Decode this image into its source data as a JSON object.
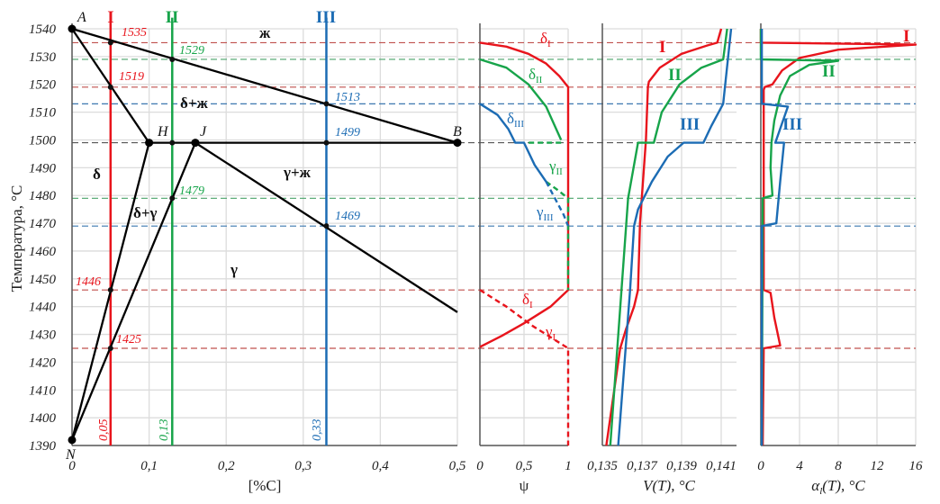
{
  "chart_data": [
    {
      "type": "line",
      "title": "",
      "xlabel": "[%C]",
      "ylabel": "Температура, °C",
      "xlim": [
        0,
        0.5
      ],
      "ylim": [
        1390,
        1540
      ],
      "x_ticks": [
        "0",
        "0,1",
        "0,2",
        "0,3",
        "0,4",
        "0,5"
      ],
      "y_ticks": [
        "1390",
        "1400",
        "1410",
        "1420",
        "1430",
        "1440",
        "1450",
        "1460",
        "1470",
        "1480",
        "1490",
        "1500",
        "1510",
        "1520",
        "1530",
        "1540"
      ],
      "grid": true,
      "phase_lines": [
        {
          "name": "AB",
          "points": [
            [
              0,
              1540
            ],
            [
              0.5,
              1499
            ]
          ]
        },
        {
          "name": "AH",
          "points": [
            [
              0,
              1540
            ],
            [
              0.1,
              1499
            ]
          ]
        },
        {
          "name": "HB",
          "points": [
            [
              0.1,
              1499
            ],
            [
              0.5,
              1499
            ]
          ]
        },
        {
          "name": "J-lower",
          "points": [
            [
              0.16,
              1499
            ],
            [
              0.5,
              1438
            ]
          ]
        },
        {
          "name": "NH",
          "points": [
            [
              0,
              1392
            ],
            [
              0.1,
              1499
            ]
          ]
        },
        {
          "name": "NJ",
          "points": [
            [
              0,
              1392
            ],
            [
              0.16,
              1499
            ]
          ]
        }
      ],
      "points": [
        {
          "label": "A",
          "x": 0,
          "T": 1540
        },
        {
          "label": "B",
          "x": 0.5,
          "T": 1499
        },
        {
          "label": "H",
          "x": 0.1,
          "T": 1499
        },
        {
          "label": "J",
          "x": 0.16,
          "T": 1499
        },
        {
          "label": "N",
          "x": 0,
          "T": 1392
        }
      ],
      "alloys": [
        {
          "label": "I",
          "composition": 0.05,
          "composition_label": "0,05",
          "color": "#e8141c"
        },
        {
          "label": "II",
          "composition": 0.13,
          "composition_label": "0,13",
          "color": "#17a44a"
        },
        {
          "label": "III",
          "composition": 0.33,
          "composition_label": "0,33",
          "color": "#1c6cb4"
        }
      ],
      "intersections": [
        {
          "label": "1535",
          "x": 0.05,
          "T": 1535,
          "color": "#e8141c"
        },
        {
          "label": "1529",
          "x": 0.13,
          "T": 1529,
          "color": "#17a44a"
        },
        {
          "label": "1519",
          "x": 0.05,
          "T": 1519,
          "color": "#e8141c"
        },
        {
          "label": "1513",
          "x": 0.33,
          "T": 1513,
          "color": "#1c6cb4"
        },
        {
          "label": "1499",
          "x": 0.33,
          "T": 1499,
          "color": "#1c6cb4"
        },
        {
          "label": "1479",
          "x": 0.13,
          "T": 1479,
          "color": "#17a44a"
        },
        {
          "label": "1469",
          "x": 0.33,
          "T": 1469,
          "color": "#1c6cb4"
        },
        {
          "label": "1446",
          "x": 0.05,
          "T": 1446,
          "color": "#e8141c"
        },
        {
          "label": "1425",
          "x": 0.05,
          "T": 1425,
          "color": "#e8141c"
        }
      ],
      "regions": [
        "ж",
        "δ+ж",
        "δ",
        "γ+ж",
        "δ+γ",
        "γ"
      ],
      "reference_isotherms": [
        {
          "T": 1535,
          "color": "#c0504d"
        },
        {
          "T": 1529,
          "color": "#4aa36a"
        },
        {
          "T": 1519,
          "color": "#c0504d"
        },
        {
          "T": 1513,
          "color": "#3c78b0"
        },
        {
          "T": 1499,
          "color": "#555555"
        },
        {
          "T": 1479,
          "color": "#4aa36a"
        },
        {
          "T": 1469,
          "color": "#3c78b0"
        },
        {
          "T": 1446,
          "color": "#c0504d"
        },
        {
          "T": 1425,
          "color": "#c0504d"
        }
      ]
    },
    {
      "type": "line",
      "xlabel": "ψ",
      "xlim": [
        0,
        1
      ],
      "ylim": [
        1390,
        1540
      ],
      "x_ticks": [
        "0",
        "0,5",
        "1"
      ],
      "series": [
        {
          "name": "δI",
          "color": "#e8141c",
          "dashed": false,
          "points": [
            [
              0,
              1535
            ],
            [
              0.3,
              1533.6
            ],
            [
              0.55,
              1531
            ],
            [
              0.75,
              1527.5
            ],
            [
              0.9,
              1523
            ],
            [
              1,
              1519
            ],
            [
              1,
              1446
            ],
            [
              0.8,
              1440
            ],
            [
              0.5,
              1434
            ],
            [
              0.25,
              1429.5
            ],
            [
              0,
              1425.5
            ]
          ]
        },
        {
          "name": "γI",
          "color": "#e8141c",
          "dashed": true,
          "points": [
            [
              0,
              1446
            ],
            [
              0.3,
              1440
            ],
            [
              0.6,
              1433
            ],
            [
              0.85,
              1428
            ],
            [
              1,
              1425
            ],
            [
              1,
              1390
            ]
          ]
        },
        {
          "name": "δII",
          "color": "#17a44a",
          "dashed": false,
          "points": [
            [
              0,
              1529
            ],
            [
              0.3,
              1526
            ],
            [
              0.55,
              1520
            ],
            [
              0.75,
              1512
            ],
            [
              0.92,
              1500
            ]
          ]
        },
        {
          "name": "δII-eutectic",
          "color": "#17a44a",
          "dashed": true,
          "points": [
            [
              0.92,
              1499
            ],
            [
              0.52,
              1499
            ]
          ]
        },
        {
          "name": "γII",
          "color": "#17a44a",
          "dashed": true,
          "points": [
            [
              0.75,
              1485
            ],
            [
              0.88,
              1482
            ],
            [
              1,
              1479
            ],
            [
              1,
              1446
            ]
          ]
        },
        {
          "name": "δIII",
          "color": "#1c6cb4",
          "dashed": false,
          "points": [
            [
              0,
              1513
            ],
            [
              0.2,
              1509
            ],
            [
              0.32,
              1504
            ],
            [
              0.4,
              1499
            ],
            [
              0.5,
              1499
            ],
            [
              0.62,
              1491
            ],
            [
              0.75,
              1485
            ]
          ]
        },
        {
          "name": "γIII",
          "color": "#1c6cb4",
          "dashed": true,
          "points": [
            [
              0.75,
              1485
            ],
            [
              0.85,
              1479
            ],
            [
              0.95,
              1473
            ],
            [
              1,
              1469
            ]
          ]
        }
      ],
      "labels": [
        {
          "main": "δ",
          "sub": "I",
          "color": "#e8141c"
        },
        {
          "main": "δ",
          "sub": "II",
          "color": "#17a44a"
        },
        {
          "main": "δ",
          "sub": "III",
          "color": "#1c6cb4"
        },
        {
          "main": "γ",
          "sub": "II",
          "color": "#17a44a"
        },
        {
          "main": "γ",
          "sub": "III",
          "color": "#1c6cb4"
        },
        {
          "main": "δ",
          "sub": "I",
          "color": "#e8141c"
        },
        {
          "main": "γ",
          "sub": "I",
          "color": "#e8141c"
        }
      ]
    },
    {
      "type": "line",
      "xlabel": "V(T), °C",
      "xlim": [
        0.135,
        0.141
      ],
      "ylim": [
        1390,
        1540
      ],
      "x_ticks": [
        "0,135",
        "0,137",
        "0,139",
        "0,141"
      ],
      "series": [
        {
          "name": "I",
          "color": "#e8141c",
          "points": [
            [
              0.141,
              1540
            ],
            [
              0.1408,
              1535
            ],
            [
              0.1403,
              1534
            ],
            [
              0.139,
              1531
            ],
            [
              0.1379,
              1526
            ],
            [
              0.13735,
              1521
            ],
            [
              0.1373,
              1519
            ],
            [
              0.1372,
              1500
            ],
            [
              0.1369,
              1470
            ],
            [
              0.1368,
              1446
            ],
            [
              0.1366,
              1440
            ],
            [
              0.1362,
              1432
            ],
            [
              0.1359,
              1425
            ],
            [
              0.1352,
              1390
            ]
          ]
        },
        {
          "name": "II",
          "color": "#17a44a",
          "points": [
            [
              0.1413,
              1540
            ],
            [
              0.1411,
              1529
            ],
            [
              0.14,
              1526
            ],
            [
              0.1389,
              1520
            ],
            [
              0.138,
              1510
            ],
            [
              0.1376,
              1499
            ],
            [
              0.1368,
              1499
            ],
            [
              0.1363,
              1479
            ],
            [
              0.1354,
              1390
            ]
          ]
        },
        {
          "name": "III",
          "color": "#1c6cb4",
          "points": [
            [
              0.1415,
              1540
            ],
            [
              0.1411,
              1513
            ],
            [
              0.1405,
              1505
            ],
            [
              0.1401,
              1499
            ],
            [
              0.1391,
              1499
            ],
            [
              0.1383,
              1494
            ],
            [
              0.1375,
              1485
            ],
            [
              0.1368,
              1475
            ],
            [
              0.1366,
              1469
            ],
            [
              0.1364,
              1446
            ],
            [
              0.1358,
              1390
            ]
          ]
        }
      ],
      "labels": [
        {
          "main": "I",
          "color": "#e8141c"
        },
        {
          "main": "II",
          "color": "#17a44a"
        },
        {
          "main": "III",
          "color": "#1c6cb4"
        }
      ]
    },
    {
      "type": "line",
      "xlabel": "αl(T), °C",
      "xlabel_main": "α",
      "xlabel_sub": "l",
      "xlabel_rest": "(T), °C",
      "xlim": [
        0,
        16
      ],
      "ylim": [
        1390,
        1540
      ],
      "x_ticks": [
        "0",
        "4",
        "8",
        "12",
        "16"
      ],
      "series": [
        {
          "name": "I",
          "color": "#e8141c",
          "points": [
            [
              0,
              1540
            ],
            [
              0,
              1535
            ],
            [
              16,
              1534.3
            ],
            [
              8,
              1532.5
            ],
            [
              4,
              1529.5
            ],
            [
              2.2,
              1525
            ],
            [
              1.2,
              1520
            ],
            [
              0.4,
              1519
            ],
            [
              0.3,
              1518
            ],
            [
              0.3,
              1446
            ],
            [
              1,
              1445
            ],
            [
              1.4,
              1436
            ],
            [
              2,
              1426
            ],
            [
              0.3,
              1425
            ],
            [
              0.2,
              1390
            ]
          ]
        },
        {
          "name": "II",
          "color": "#17a44a",
          "points": [
            [
              0,
              1540
            ],
            [
              0,
              1529
            ],
            [
              8,
              1528.5
            ],
            [
              5,
              1527
            ],
            [
              3,
              1523
            ],
            [
              2,
              1516
            ],
            [
              1.4,
              1507
            ],
            [
              1.1,
              1499
            ],
            [
              1,
              1490
            ],
            [
              1.2,
              1480
            ],
            [
              0.2,
              1479
            ],
            [
              0.1,
              1390
            ]
          ]
        },
        {
          "name": "III",
          "color": "#1c6cb4",
          "points": [
            [
              0.1,
              1540
            ],
            [
              0.1,
              1513
            ],
            [
              2.8,
              1512
            ],
            [
              2.2,
              1506
            ],
            [
              1.5,
              1499
            ],
            [
              2.4,
              1499
            ],
            [
              2,
              1485
            ],
            [
              1.6,
              1470
            ],
            [
              0.1,
              1469
            ],
            [
              0.1,
              1390
            ]
          ]
        }
      ],
      "labels": [
        {
          "main": "I",
          "color": "#e8141c"
        },
        {
          "main": "II",
          "color": "#17a44a"
        },
        {
          "main": "III",
          "color": "#1c6cb4"
        }
      ]
    }
  ]
}
